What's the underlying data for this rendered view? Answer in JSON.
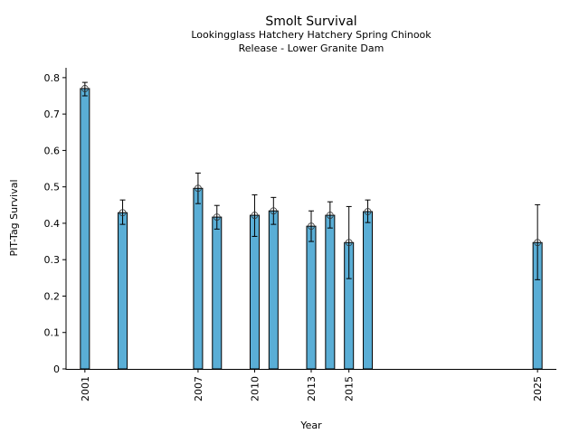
{
  "chart_data": {
    "type": "bar",
    "title": "Smolt Survival",
    "subtitle_lines": [
      "Lookingglass Hatchery Hatchery Spring Chinook",
      "Release - Lower Granite Dam"
    ],
    "xlabel": "Year",
    "ylabel": "PIT-Tag Survival",
    "x": [
      2001,
      2003,
      2007,
      2008,
      2010,
      2011,
      2013,
      2014,
      2015,
      2016,
      2025
    ],
    "values": [
      0.77,
      0.429,
      0.496,
      0.417,
      0.422,
      0.434,
      0.392,
      0.422,
      0.347,
      0.432,
      0.347
    ],
    "error_upper": [
      0.787,
      0.464,
      0.538,
      0.449,
      0.478,
      0.471,
      0.434,
      0.459,
      0.446,
      0.464,
      0.451
    ],
    "error_lower": [
      0.75,
      0.397,
      0.454,
      0.384,
      0.364,
      0.397,
      0.35,
      0.387,
      0.248,
      0.402,
      0.245
    ],
    "xticks": [
      2001,
      2007,
      2010,
      2013,
      2015,
      2025
    ],
    "yticks": [
      "0",
      "0.1",
      "0.2",
      "0.3",
      "0.4",
      "0.5",
      "0.6",
      "0.7",
      "0.8"
    ],
    "xlim": [
      2000,
      2026
    ],
    "ylim": [
      0,
      0.827
    ],
    "grid": false,
    "bar_color": "#5aaed6"
  }
}
